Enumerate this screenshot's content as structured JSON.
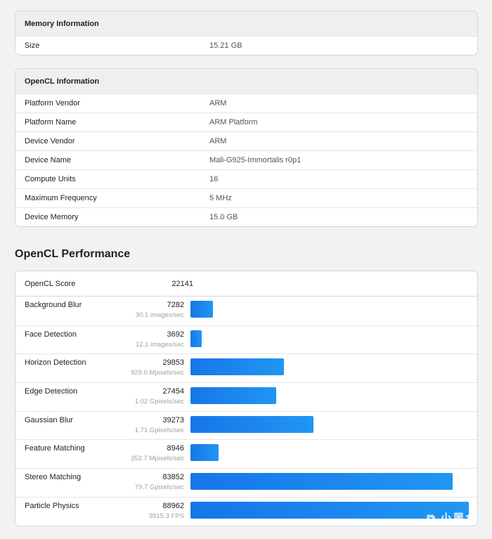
{
  "memory": {
    "title": "Memory Information",
    "rows": [
      {
        "k": "Size",
        "v": "15.21 GB"
      }
    ]
  },
  "opencl_info": {
    "title": "OpenCL Information",
    "rows": [
      {
        "k": "Platform Vendor",
        "v": "ARM"
      },
      {
        "k": "Platform Name",
        "v": "ARM Platform"
      },
      {
        "k": "Device Vendor",
        "v": "ARM"
      },
      {
        "k": "Device Name",
        "v": "Mali-G925-Immortalis r0p1"
      },
      {
        "k": "Compute Units",
        "v": "16"
      },
      {
        "k": "Maximum Frequency",
        "v": "5 MHz"
      },
      {
        "k": "Device Memory",
        "v": "15.0 GB"
      }
    ]
  },
  "performance": {
    "title": "OpenCL Performance",
    "score_label": "OpenCL Score",
    "score": "22141",
    "max_score": 88962,
    "accent": "#1976e8",
    "tests": [
      {
        "name": "Background Blur",
        "score": 7282,
        "unit": "30.1 images/sec"
      },
      {
        "name": "Face Detection",
        "score": 3692,
        "unit": "12.1 images/sec"
      },
      {
        "name": "Horizon Detection",
        "score": 29853,
        "unit": "929.0 Mpixels/sec"
      },
      {
        "name": "Edge Detection",
        "score": 27454,
        "unit": "1.02 Gpixels/sec"
      },
      {
        "name": "Gaussian Blur",
        "score": 39273,
        "unit": "1.71 Gpixels/sec"
      },
      {
        "name": "Feature Matching",
        "score": 8946,
        "unit": "352.7 Mpixels/sec"
      },
      {
        "name": "Stereo Matching",
        "score": 83852,
        "unit": "79.7 Gpixels/sec"
      },
      {
        "name": "Particle Physics",
        "score": 88962,
        "unit": "3915.3 FPS"
      }
    ]
  },
  "watermark": "小黑盒"
}
